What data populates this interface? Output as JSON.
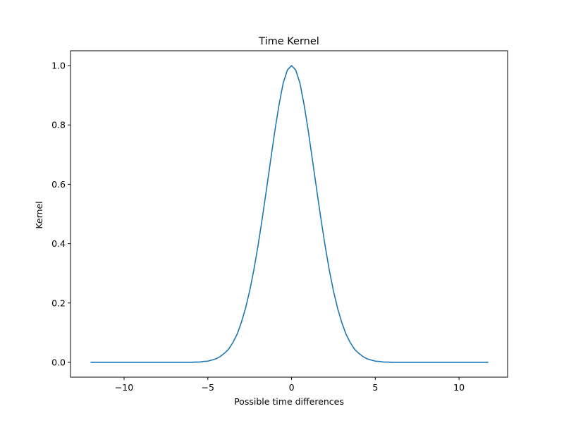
{
  "chart_data": {
    "type": "line",
    "title": "Time Kernel",
    "xlabel": "Possible time differences",
    "ylabel": "Kernel",
    "xlim": [
      -13.2,
      12.9
    ],
    "ylim": [
      -0.05,
      1.05
    ],
    "grid": false,
    "xticks": [
      -10,
      -5,
      0,
      5,
      10
    ],
    "xtick_labels": [
      "−10",
      "−5",
      "0",
      "5",
      "10"
    ],
    "yticks": [
      0.0,
      0.2,
      0.4,
      0.6,
      0.8,
      1.0
    ],
    "ytick_labels": [
      "0.0",
      "0.2",
      "0.4",
      "0.6",
      "0.8",
      "1.0"
    ],
    "series": [
      {
        "color": "#1f77b4",
        "x": [
          -12.0,
          -11.75,
          -11.5,
          -11.25,
          -11.0,
          -10.75,
          -10.5,
          -10.25,
          -10.0,
          -9.75,
          -9.5,
          -9.25,
          -9.0,
          -8.75,
          -8.5,
          -8.25,
          -8.0,
          -7.75,
          -7.5,
          -7.25,
          -7.0,
          -6.75,
          -6.5,
          -6.25,
          -6.0,
          -5.75,
          -5.5,
          -5.25,
          -5.0,
          -4.75,
          -4.5,
          -4.25,
          -4.0,
          -3.75,
          -3.5,
          -3.25,
          -3.0,
          -2.75,
          -2.5,
          -2.25,
          -2.0,
          -1.75,
          -1.5,
          -1.25,
          -1.0,
          -0.75,
          -0.5,
          -0.25,
          0.0,
          0.25,
          0.5,
          0.75,
          1.0,
          1.25,
          1.5,
          1.75,
          2.0,
          2.25,
          2.5,
          2.75,
          3.0,
          3.25,
          3.5,
          3.75,
          4.0,
          4.25,
          4.5,
          4.75,
          5.0,
          5.25,
          5.5,
          5.75,
          6.0,
          6.25,
          6.5,
          6.75,
          7.0,
          7.25,
          7.5,
          7.75,
          8.0,
          8.25,
          8.5,
          8.75,
          9.0,
          9.25,
          9.5,
          9.75,
          10.0,
          10.25,
          10.5,
          10.75,
          11.0,
          11.25,
          11.5,
          11.75
        ],
        "y": [
          0.0,
          0.0,
          0.0,
          0.0,
          0.0,
          0.0,
          0.0,
          0.0,
          0.0,
          0.0,
          0.0,
          0.0,
          0.0,
          0.0,
          0.0,
          0.0,
          0.0,
          0.0,
          0.0,
          0.0,
          0.0,
          0.0,
          0.0,
          0.0,
          0.0,
          0.001,
          0.001,
          0.003,
          0.004,
          0.008,
          0.012,
          0.02,
          0.031,
          0.045,
          0.067,
          0.095,
          0.134,
          0.182,
          0.241,
          0.312,
          0.394,
          0.485,
          0.582,
          0.681,
          0.779,
          0.868,
          0.941,
          0.985,
          1.0,
          0.985,
          0.941,
          0.868,
          0.779,
          0.681,
          0.582,
          0.485,
          0.394,
          0.312,
          0.241,
          0.182,
          0.134,
          0.095,
          0.067,
          0.045,
          0.031,
          0.02,
          0.012,
          0.008,
          0.004,
          0.003,
          0.001,
          0.001,
          0.0,
          0.0,
          0.0,
          0.0,
          0.0,
          0.0,
          0.0,
          0.0,
          0.0,
          0.0,
          0.0,
          0.0,
          0.0,
          0.0,
          0.0,
          0.0,
          0.0,
          0.0,
          0.0,
          0.0,
          0.0,
          0.0,
          0.0,
          0.0
        ]
      }
    ]
  }
}
